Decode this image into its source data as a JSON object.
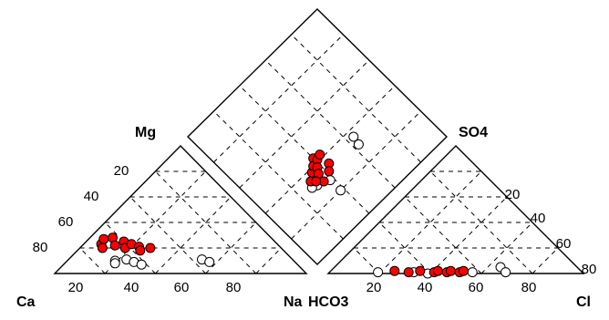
{
  "chart_data": {
    "type": "scatter",
    "subtype": "piper-diagram",
    "title": "",
    "colors": {
      "filled": "#ff0000",
      "open": "#ffffff",
      "outline": "#000000"
    },
    "grid": "dashed",
    "cation_triangle": {
      "corners": {
        "left": "Ca",
        "right": "Na",
        "top": "Mg"
      },
      "bottom_tick_labels": [
        "20",
        "40",
        "60",
        "80"
      ],
      "left_tick_labels": [
        "20",
        "40",
        "60",
        "80"
      ]
    },
    "anion_triangle": {
      "corners": {
        "left": "HCO3",
        "right": "Cl",
        "top": "SO4"
      },
      "bottom_tick_labels": [
        "20",
        "40",
        "60",
        "80"
      ],
      "right_tick_labels": [
        "20",
        "40",
        "60",
        "80"
      ]
    },
    "series": [
      {
        "name": "",
        "marker": "filled-circle"
      },
      {
        "name": "",
        "marker": "open-circle"
      }
    ],
    "cation_points": {
      "filled": [
        {
          "ca": 70,
          "mg": 23
        },
        {
          "ca": 67,
          "mg": 27
        },
        {
          "ca": 63,
          "mg": 28
        },
        {
          "ca": 71,
          "mg": 20
        },
        {
          "ca": 65,
          "mg": 22
        },
        {
          "ca": 60,
          "mg": 25
        },
        {
          "ca": 62,
          "mg": 20
        },
        {
          "ca": 58,
          "mg": 23
        },
        {
          "ca": 56,
          "mg": 21
        },
        {
          "ca": 57,
          "mg": 18
        },
        {
          "ca": 52,
          "mg": 20
        }
      ],
      "open": [
        {
          "ca": 71,
          "mg": 10
        },
        {
          "ca": 72,
          "mg": 8
        },
        {
          "ca": 66,
          "mg": 11
        },
        {
          "ca": 64,
          "mg": 9
        },
        {
          "ca": 62,
          "mg": 7
        },
        {
          "ca": 36,
          "mg": 11
        },
        {
          "ca": 34,
          "mg": 9
        }
      ]
    },
    "anion_points": {
      "filled": [
        {
          "hco3": 73,
          "so4": 2
        },
        {
          "hco3": 68,
          "so4": 1
        },
        {
          "hco3": 63,
          "so4": 2
        },
        {
          "hco3": 58,
          "so4": 1
        },
        {
          "hco3": 56,
          "so4": 2
        },
        {
          "hco3": 53,
          "so4": 1
        },
        {
          "hco3": 51,
          "so4": 2
        },
        {
          "hco3": 48,
          "so4": 1
        },
        {
          "hco3": 46,
          "so4": 2
        }
      ],
      "open": [
        {
          "hco3": 80,
          "so4": 1
        },
        {
          "hco3": 66,
          "so4": 1
        },
        {
          "hco3": 61,
          "so4": 0
        },
        {
          "hco3": 43,
          "so4": 1
        },
        {
          "hco3": 30,
          "so4": 5
        },
        {
          "hco3": 30,
          "so4": 1
        }
      ]
    },
    "diamond_points": {
      "filled": [
        {
          "nak": 40,
          "clso4": 43
        },
        {
          "nak": 34,
          "clso4": 38
        },
        {
          "nak": 37,
          "clso4": 40
        },
        {
          "nak": 41,
          "clso4": 41
        },
        {
          "nak": 38,
          "clso4": 38
        },
        {
          "nak": 36,
          "clso4": 35
        },
        {
          "nak": 44,
          "clso4": 42
        },
        {
          "nak": 44,
          "clso4": 35
        },
        {
          "nak": 41,
          "clso4": 32
        },
        {
          "nak": 35,
          "clso4": 30
        },
        {
          "nak": 30,
          "clso4": 35
        },
        {
          "nak": 32,
          "clso4": 33
        }
      ],
      "open": [
        {
          "nak": 30,
          "clso4": 35
        },
        {
          "nak": 38,
          "clso4": 28
        },
        {
          "nak": 31,
          "clso4": 31
        },
        {
          "nak": 28,
          "clso4": 32
        },
        {
          "nak": 38,
          "clso4": 20
        },
        {
          "nak": 64,
          "clso4": 36
        },
        {
          "nak": 63,
          "clso4": 31
        }
      ]
    }
  }
}
